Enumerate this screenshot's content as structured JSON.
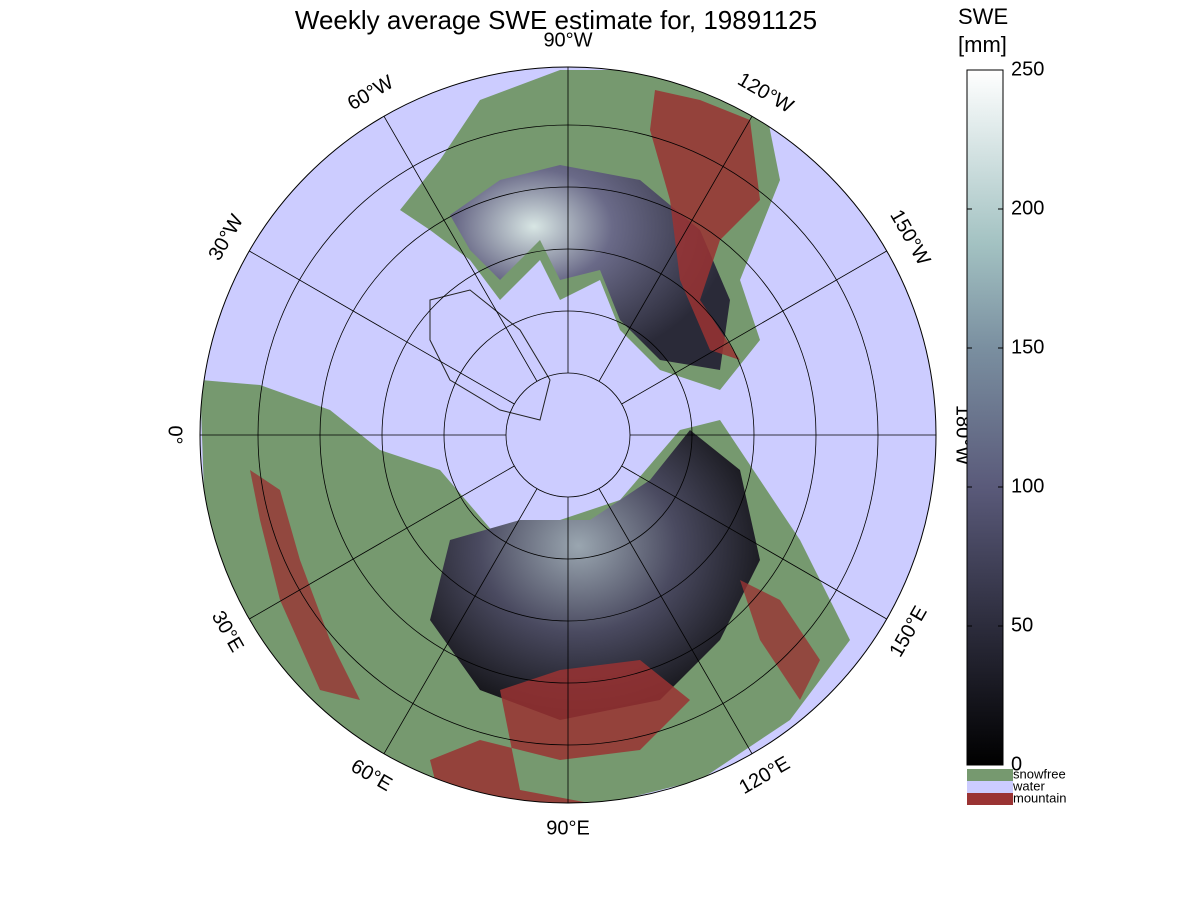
{
  "map": {
    "title": "Weekly average SWE estimate for, 19891125",
    "meridians": [
      {
        "lon": -90,
        "label": "90°W"
      },
      {
        "lon": -60,
        "label": "60°W"
      },
      {
        "lon": -30,
        "label": "30°W"
      },
      {
        "lon": 0,
        "label": "0°"
      },
      {
        "lon": 30,
        "label": "30°E"
      },
      {
        "lon": 60,
        "label": "60°E"
      },
      {
        "lon": 90,
        "label": "90°E"
      },
      {
        "lon": 120,
        "label": "120°E"
      },
      {
        "lon": 150,
        "label": "150°E"
      },
      {
        "lon": 180,
        "label": "180°W"
      },
      {
        "lon": -150,
        "label": "150°W"
      },
      {
        "lon": -120,
        "label": "120°W"
      }
    ],
    "colorbar": {
      "label": [
        "SWE",
        "[mm]"
      ],
      "clim": [
        0,
        250
      ],
      "ticks": [
        0,
        50,
        100,
        150,
        200,
        250
      ]
    },
    "legend": [
      {
        "name": "snowfree",
        "color": "#76996f"
      },
      {
        "name": "water",
        "color": "#ccccff"
      },
      {
        "name": "mountain",
        "color": "#9a3333"
      }
    ]
  }
}
